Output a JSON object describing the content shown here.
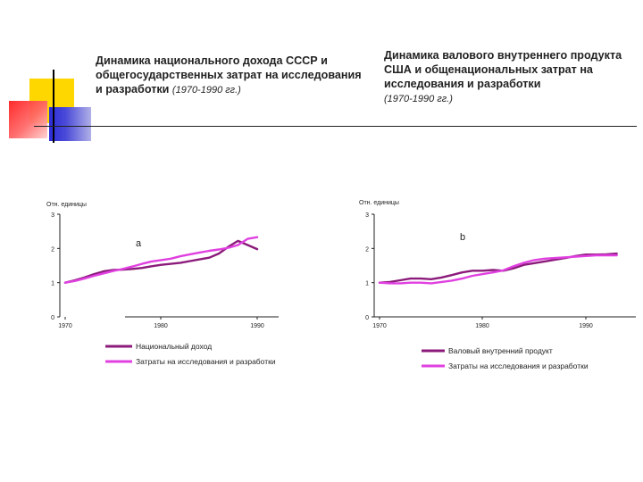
{
  "titles": {
    "left_main": "Динамика национального дохода СССР и общегосударственных затрат на исследования и разработки",
    "left_years": "(1970-1990 гг.)",
    "right_main": "Динамика валового внутреннего продукта США и общенациональных затрат на исследования и разработки",
    "right_years": "(1970-1990 гг.)"
  },
  "colors": {
    "deco_yellow": "#ffd700",
    "deco_red": "#ff3030",
    "deco_blue": "#3333cc",
    "dark_series": "#8b1a7a",
    "light_series": "#e040e0"
  },
  "chart_data": [
    {
      "type": "line",
      "panel_label": "a",
      "ylabel": "Отн. единицы",
      "ylim": [
        0,
        3
      ],
      "yticks": [
        "0",
        "1",
        "2",
        "3"
      ],
      "xlim": [
        1970,
        1992
      ],
      "xticks": [
        "1970",
        "1980",
        "1990"
      ],
      "legend_position": "bottom",
      "series": [
        {
          "name": "Национальный доход",
          "color": "#8b1a7a",
          "points": [
            [
              1970,
              1.0
            ],
            [
              1971,
              1.07
            ],
            [
              1972,
              1.15
            ],
            [
              1973,
              1.25
            ],
            [
              1974,
              1.33
            ],
            [
              1975,
              1.37
            ],
            [
              1976,
              1.38
            ],
            [
              1977,
              1.4
            ],
            [
              1978,
              1.43
            ],
            [
              1979,
              1.48
            ],
            [
              1980,
              1.52
            ],
            [
              1981,
              1.55
            ],
            [
              1982,
              1.58
            ],
            [
              1983,
              1.63
            ],
            [
              1984,
              1.68
            ],
            [
              1985,
              1.73
            ],
            [
              1986,
              1.85
            ],
            [
              1987,
              2.05
            ],
            [
              1988,
              2.22
            ],
            [
              1989,
              2.1
            ],
            [
              1990,
              1.98
            ]
          ]
        },
        {
          "name": "Затраты на исследования и разработки",
          "color": "#e040e0",
          "points": [
            [
              1970,
              1.0
            ],
            [
              1971,
              1.05
            ],
            [
              1972,
              1.12
            ],
            [
              1973,
              1.2
            ],
            [
              1974,
              1.27
            ],
            [
              1975,
              1.34
            ],
            [
              1976,
              1.4
            ],
            [
              1977,
              1.47
            ],
            [
              1978,
              1.55
            ],
            [
              1979,
              1.62
            ],
            [
              1980,
              1.66
            ],
            [
              1981,
              1.7
            ],
            [
              1982,
              1.77
            ],
            [
              1983,
              1.83
            ],
            [
              1984,
              1.88
            ],
            [
              1985,
              1.93
            ],
            [
              1986,
              1.97
            ],
            [
              1987,
              2.02
            ],
            [
              1988,
              2.1
            ],
            [
              1989,
              2.28
            ],
            [
              1990,
              2.33
            ]
          ]
        }
      ]
    },
    {
      "type": "line",
      "panel_label": "b",
      "ylabel": "Отн. единицы",
      "ylim": [
        0,
        3
      ],
      "yticks": [
        "0",
        "1",
        "2",
        "3"
      ],
      "xlim": [
        1970,
        1995
      ],
      "xticks": [
        "1970",
        "1980",
        "1990"
      ],
      "legend_position": "bottom",
      "series": [
        {
          "name": "Валовый внутренний продукт",
          "color": "#8b1a7a",
          "points": [
            [
              1970,
              1.0
            ],
            [
              1971,
              1.02
            ],
            [
              1972,
              1.07
            ],
            [
              1973,
              1.12
            ],
            [
              1974,
              1.12
            ],
            [
              1975,
              1.1
            ],
            [
              1976,
              1.15
            ],
            [
              1977,
              1.22
            ],
            [
              1978,
              1.3
            ],
            [
              1979,
              1.35
            ],
            [
              1980,
              1.35
            ],
            [
              1981,
              1.37
            ],
            [
              1982,
              1.35
            ],
            [
              1983,
              1.42
            ],
            [
              1984,
              1.52
            ],
            [
              1985,
              1.57
            ],
            [
              1986,
              1.62
            ],
            [
              1987,
              1.67
            ],
            [
              1988,
              1.72
            ],
            [
              1989,
              1.78
            ],
            [
              1990,
              1.82
            ],
            [
              1991,
              1.82
            ],
            [
              1992,
              1.83
            ],
            [
              1993,
              1.85
            ]
          ]
        },
        {
          "name": "Затраты на исследования и разработки",
          "color": "#e040e0",
          "points": [
            [
              1970,
              1.0
            ],
            [
              1971,
              0.98
            ],
            [
              1972,
              0.98
            ],
            [
              1973,
              1.0
            ],
            [
              1974,
              1.0
            ],
            [
              1975,
              0.98
            ],
            [
              1976,
              1.02
            ],
            [
              1977,
              1.06
            ],
            [
              1978,
              1.12
            ],
            [
              1979,
              1.2
            ],
            [
              1980,
              1.25
            ],
            [
              1981,
              1.3
            ],
            [
              1982,
              1.36
            ],
            [
              1983,
              1.48
            ],
            [
              1984,
              1.58
            ],
            [
              1985,
              1.66
            ],
            [
              1986,
              1.7
            ],
            [
              1987,
              1.72
            ],
            [
              1988,
              1.74
            ],
            [
              1989,
              1.76
            ],
            [
              1990,
              1.78
            ],
            [
              1991,
              1.8
            ],
            [
              1992,
              1.8
            ],
            [
              1993,
              1.8
            ]
          ]
        }
      ]
    }
  ]
}
